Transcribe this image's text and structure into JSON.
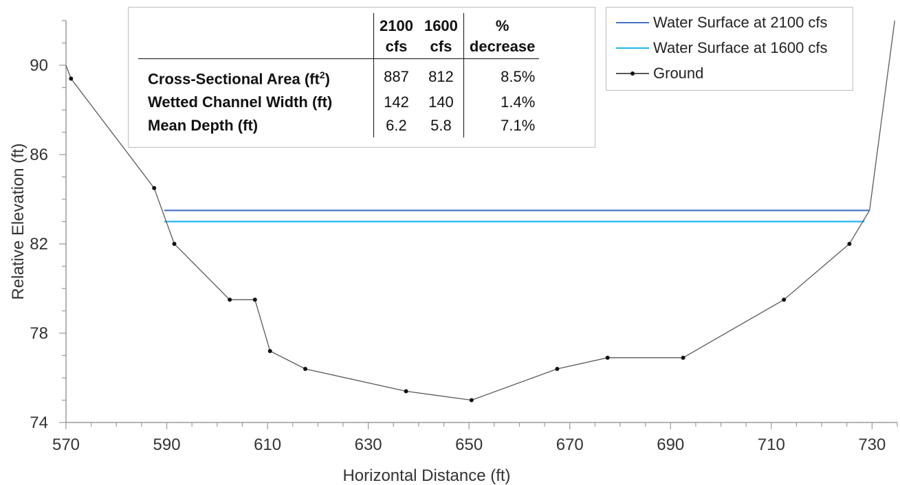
{
  "chart_data": {
    "type": "line",
    "title": "",
    "xlabel": "Horizontal Distance (ft)",
    "ylabel": "Relative Elevation (ft)",
    "xlim": [
      570,
      735
    ],
    "ylim": [
      74,
      92
    ],
    "x_ticks": [
      570,
      590,
      610,
      630,
      650,
      670,
      690,
      710,
      730
    ],
    "y_ticks": [
      74,
      78,
      82,
      86,
      90
    ],
    "grid": false,
    "legend_position": "top-right",
    "series": [
      {
        "name": "Water Surface at 2100 cfs",
        "color": "#4472C4",
        "x": [
          589.5,
          729.5
        ],
        "y": [
          83.5,
          83.5
        ]
      },
      {
        "name": "Water Surface at 1600 cfs",
        "color": "#1FB7F0",
        "x": [
          589.5,
          728.5
        ],
        "y": [
          83.0,
          83.0
        ]
      },
      {
        "name": "Ground",
        "color": "#595959",
        "markers": true,
        "x": [
          570,
          571,
          587.5,
          591.5,
          602.5,
          607.5,
          610.5,
          617.5,
          637.5,
          650.5,
          667.5,
          677.5,
          692.5,
          712.5,
          725.5,
          729.5,
          734.5
        ],
        "y": [
          90.0,
          89.4,
          84.5,
          82.0,
          79.5,
          79.5,
          77.2,
          76.4,
          75.4,
          75.0,
          76.4,
          76.9,
          76.9,
          79.5,
          82.0,
          83.5,
          92.0
        ],
        "marker_points": [
          1,
          2,
          3,
          4,
          5,
          6,
          7,
          8,
          9,
          10,
          11,
          12,
          13,
          14
        ]
      }
    ],
    "table": {
      "columns": [
        "",
        "2100 cfs",
        "1600 cfs",
        "% decrease"
      ],
      "header_lines": [
        [
          "2100",
          "cfs"
        ],
        [
          "1600",
          "cfs"
        ],
        [
          "%",
          "decrease"
        ]
      ],
      "rows": [
        {
          "metric": "Cross-Sectional Area (ft",
          "sup": "2",
          "metric_end": ")",
          "v2100": "887",
          "v1600": "812",
          "pct": "8.5%"
        },
        {
          "metric": "Wetted Channel Width (ft)",
          "sup": "",
          "metric_end": "",
          "v2100": "142",
          "v1600": "140",
          "pct": "1.4%"
        },
        {
          "metric": "Mean Depth (ft)",
          "sup": "",
          "metric_end": "",
          "v2100": "6.2",
          "v1600": "5.8",
          "pct": "7.1%"
        }
      ]
    }
  }
}
